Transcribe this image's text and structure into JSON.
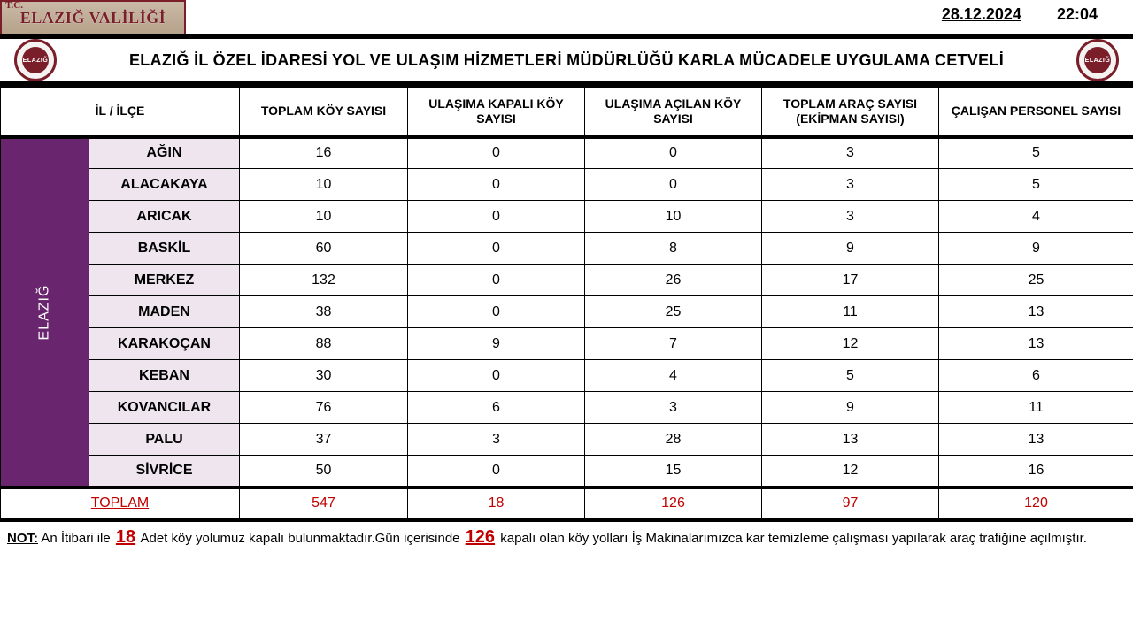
{
  "header": {
    "logo_sup": "T.C.",
    "logo_main": "ELAZIĞ VALİLİĞİ",
    "date": "28.12.2024",
    "time": "22:04",
    "badge_text": "ELAZIĞ"
  },
  "report_title": "ELAZIĞ İL ÖZEL İDARESİ YOL VE ULAŞIM HİZMETLERİ MÜDÜRLÜĞÜ KARLA MÜCADELE UYGULAMA CETVELİ",
  "table": {
    "province_label": "ELAZIĞ",
    "columns": [
      "İL / İLÇE",
      "TOPLAM KÖY SAYISI",
      "ULAŞIMA KAPALI KÖY SAYISI",
      "ULAŞIMA AÇILAN KÖY SAYISI",
      "TOPLAM ARAÇ SAYISI   (EKİPMAN SAYISI)",
      "ÇALIŞAN PERSONEL SAYISI"
    ],
    "col_widths": [
      "100px",
      "170px",
      "190px",
      "200px",
      "200px",
      "200px",
      "220px"
    ],
    "rows": [
      {
        "district": "AĞIN",
        "v": [
          16,
          0,
          0,
          3,
          5
        ]
      },
      {
        "district": "ALACAKAYA",
        "v": [
          10,
          0,
          0,
          3,
          5
        ]
      },
      {
        "district": "ARICAK",
        "v": [
          10,
          0,
          10,
          3,
          4
        ]
      },
      {
        "district": "BASKİL",
        "v": [
          60,
          0,
          8,
          9,
          9
        ]
      },
      {
        "district": "MERKEZ",
        "v": [
          132,
          0,
          26,
          17,
          25
        ]
      },
      {
        "district": "MADEN",
        "v": [
          38,
          0,
          25,
          11,
          13
        ]
      },
      {
        "district": "KARAKOÇAN",
        "v": [
          88,
          9,
          7,
          12,
          13
        ]
      },
      {
        "district": "KEBAN",
        "v": [
          30,
          0,
          4,
          5,
          6
        ]
      },
      {
        "district": "KOVANCILAR",
        "v": [
          76,
          6,
          3,
          9,
          11
        ]
      },
      {
        "district": "PALU",
        "v": [
          37,
          3,
          28,
          13,
          13
        ]
      },
      {
        "district": "SİVRİCE",
        "v": [
          50,
          0,
          15,
          12,
          16
        ]
      }
    ],
    "total_label": "TOPLAM",
    "totals": [
      547,
      18,
      126,
      97,
      120
    ]
  },
  "note": {
    "label": "NOT:",
    "pre1": " An İtibari ile ",
    "em1": "18",
    "mid1": " Adet köy yolumuz kapalı bulunmaktadır.Gün içerisinde ",
    "em2": "126",
    "post": " kapalı olan köy yolları İş Makinalarımızca kar temizleme çalışması yapılarak araç trafiğine açılmıştır."
  },
  "style": {
    "accent_purple": "#69256e",
    "district_bg": "#eee5ef",
    "total_color": "#c00000",
    "border_color": "#000000",
    "badge_border": "#7a1f2a"
  }
}
